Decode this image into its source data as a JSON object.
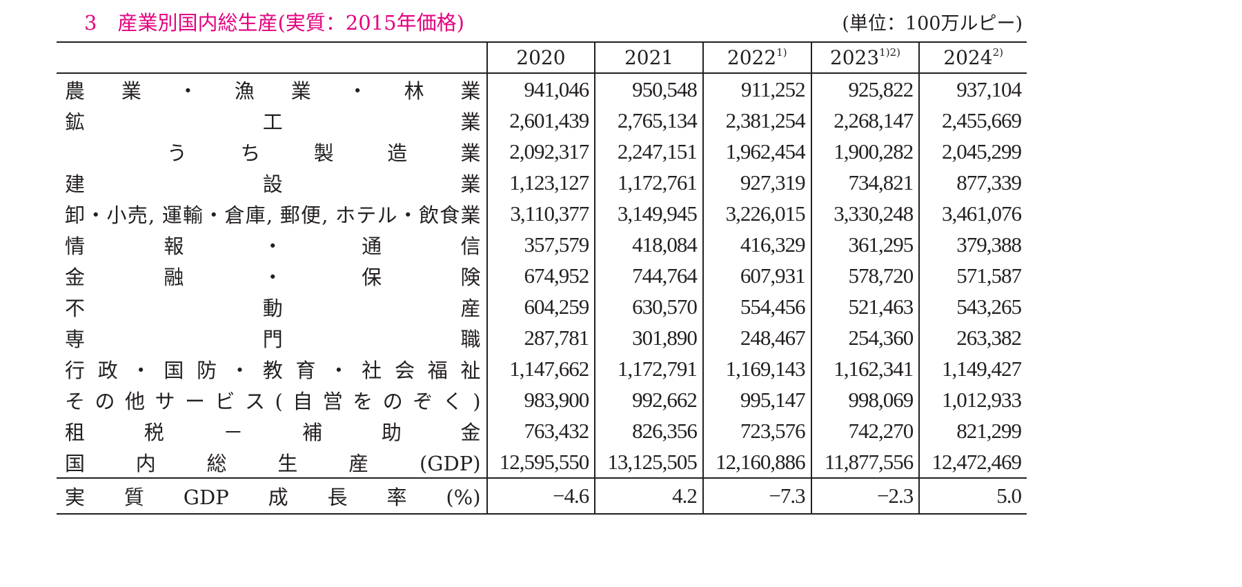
{
  "title": {
    "number": "3",
    "text": "産業別国内総生産(実質：2015年価格)",
    "color": "#e4007f"
  },
  "unit": "(単位：100万ルピー)",
  "columns": [
    {
      "year": "2020",
      "note": ""
    },
    {
      "year": "2021",
      "note": ""
    },
    {
      "year": "2022",
      "note": "1)"
    },
    {
      "year": "2023",
      "note": "1)2)"
    },
    {
      "year": "2024",
      "note": "2)"
    }
  ],
  "rows": [
    {
      "label": "農業・漁業・林業",
      "values": [
        "941,046",
        "950,548",
        "911,252",
        "925,822",
        "937,104"
      ]
    },
    {
      "label": "鉱工業",
      "values": [
        "2,601,439",
        "2,765,134",
        "2,381,254",
        "2,268,147",
        "2,455,669"
      ]
    },
    {
      "label": "うち製造業",
      "values": [
        "2,092,317",
        "2,247,151",
        "1,962,454",
        "1,900,282",
        "2,045,299"
      ]
    },
    {
      "label": "建設業",
      "values": [
        "1,123,127",
        "1,172,761",
        "927,319",
        "734,821",
        "877,339"
      ]
    },
    {
      "label": "卸・小売, 運輸・倉庫, 郵便, ホテル・飲食業",
      "values": [
        "3,110,377",
        "3,149,945",
        "3,226,015",
        "3,330,248",
        "3,461,076"
      ]
    },
    {
      "label": "情報・通信",
      "values": [
        "357,579",
        "418,084",
        "416,329",
        "361,295",
        "379,388"
      ]
    },
    {
      "label": "金融・保険",
      "values": [
        "674,952",
        "744,764",
        "607,931",
        "578,720",
        "571,587"
      ]
    },
    {
      "label": "不動産",
      "values": [
        "604,259",
        "630,570",
        "554,456",
        "521,463",
        "543,265"
      ]
    },
    {
      "label": "専門職",
      "values": [
        "287,781",
        "301,890",
        "248,467",
        "254,360",
        "263,382"
      ]
    },
    {
      "label": "行政・国防・教育・社会福祉",
      "values": [
        "1,147,662",
        "1,172,791",
        "1,169,143",
        "1,162,341",
        "1,149,427"
      ]
    },
    {
      "label": "その他サービス(自営をのぞく)",
      "values": [
        "983,900",
        "992,662",
        "995,147",
        "998,069",
        "1,012,933"
      ]
    },
    {
      "label": "租税－補助金",
      "values": [
        "763,432",
        "826,356",
        "723,576",
        "742,270",
        "821,299"
      ]
    },
    {
      "label": "国内総生産(GDP)",
      "values": [
        "12,595,550",
        "13,125,505",
        "12,160,886",
        "11,877,556",
        "12,472,469"
      ]
    }
  ],
  "growth_row": {
    "label": "実質GDP成長率(%)",
    "values": [
      "−4.6",
      "4.2",
      "−7.3",
      "−2.3",
      "5.0"
    ]
  }
}
